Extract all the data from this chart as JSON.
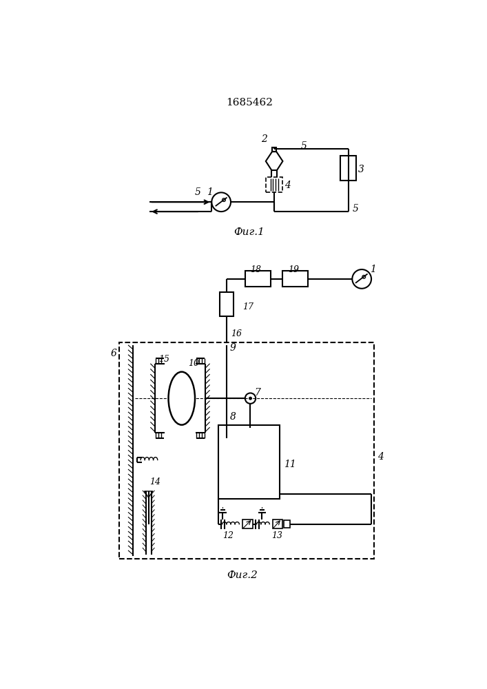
{
  "title": "1685462",
  "fig1_label": "Фиг.1",
  "fig2_label": "Фиг.2",
  "bg_color": "#ffffff",
  "lc": "#000000",
  "lw": 1.5
}
